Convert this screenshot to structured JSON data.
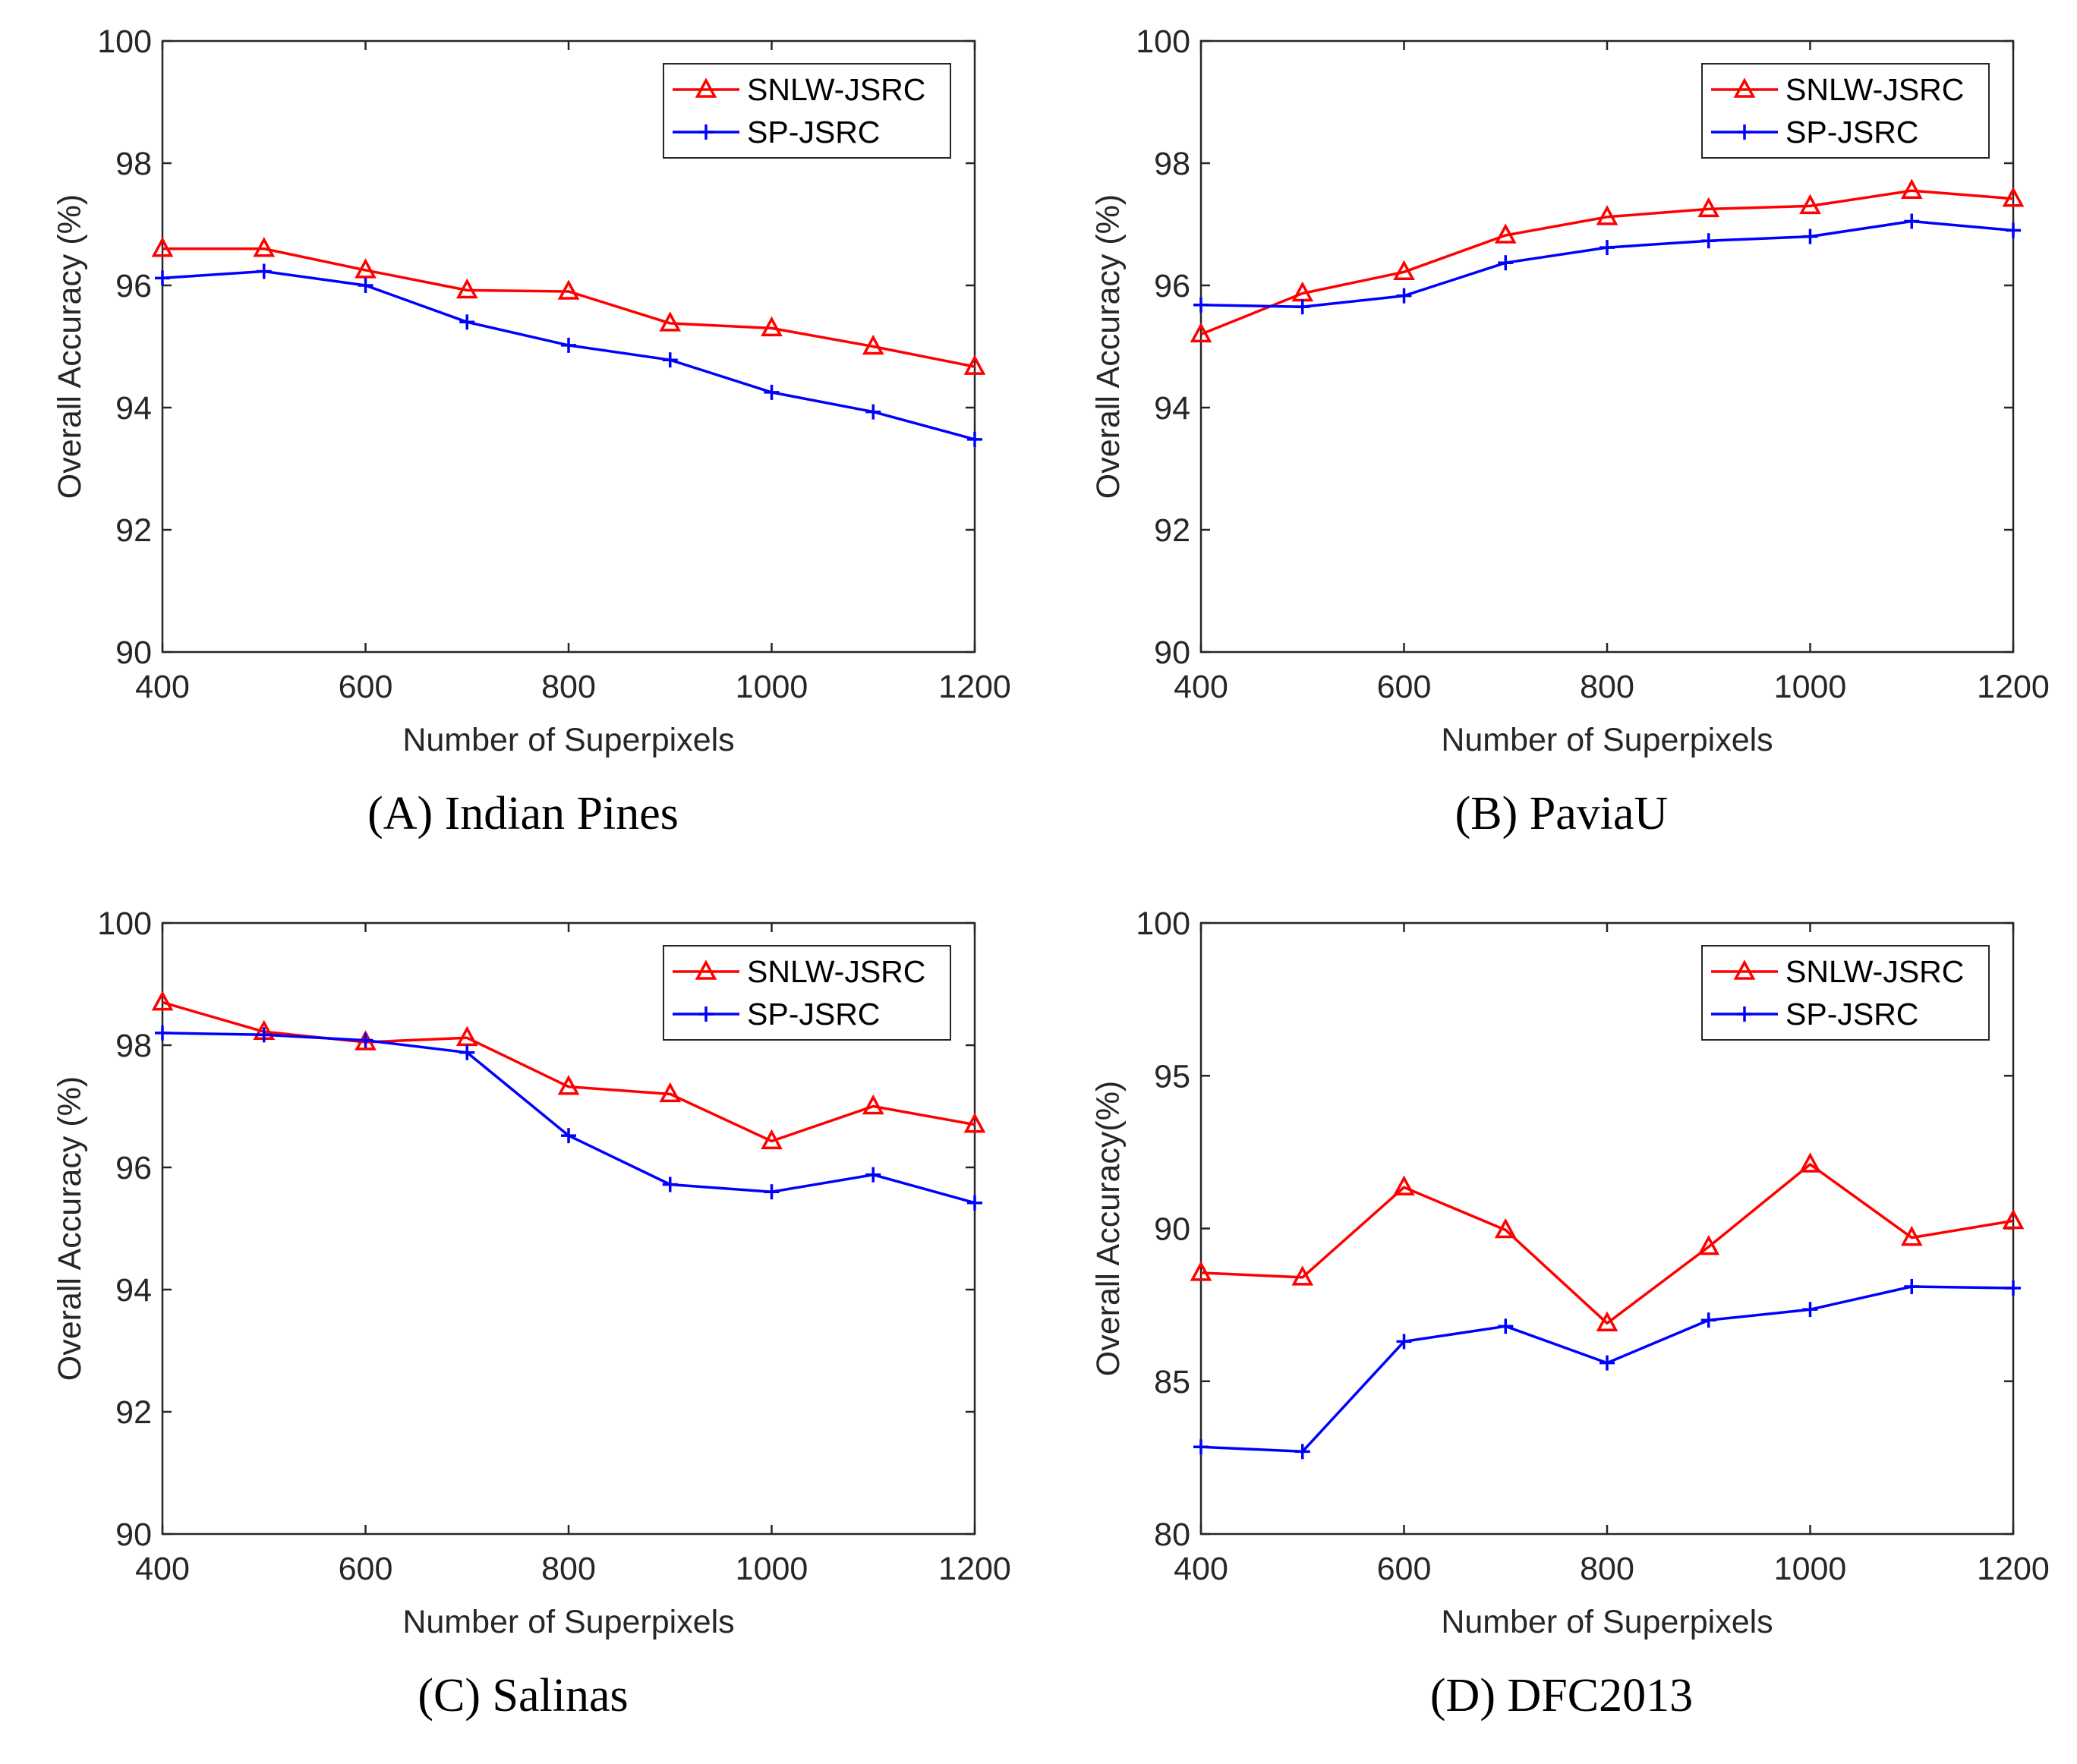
{
  "chart_data": [
    {
      "type": "line",
      "caption": "(A) Indian Pines",
      "xlabel": "Number of Superpixels",
      "ylabel": "Overall Accuracy (%)",
      "xlim": [
        400,
        1200
      ],
      "ylim": [
        90,
        100
      ],
      "xticks": [
        "400",
        "600",
        "800",
        "1000",
        "1200"
      ],
      "yticks": [
        "90",
        "92",
        "94",
        "96",
        "98",
        "100"
      ],
      "x": [
        400,
        500,
        600,
        700,
        800,
        900,
        1000,
        1100,
        1200
      ],
      "series": [
        {
          "name": "SNLW-JSRC",
          "color": "#ff0000",
          "marker": "triangle",
          "values": [
            96.6,
            96.6,
            96.25,
            95.92,
            95.9,
            95.38,
            95.3,
            95.0,
            94.67
          ]
        },
        {
          "name": "SP-JSRC",
          "color": "#0000ff",
          "marker": "plus",
          "values": [
            96.12,
            96.23,
            96.0,
            95.4,
            95.02,
            94.78,
            94.25,
            93.93,
            93.48
          ]
        }
      ],
      "legend": "top-right",
      "grid": false
    },
    {
      "type": "line",
      "caption": "(B) PaviaU",
      "xlabel": "Number of Superpixels",
      "ylabel": "Overall Accuracy (%)",
      "xlim": [
        400,
        1200
      ],
      "ylim": [
        90,
        100
      ],
      "xticks": [
        "400",
        "600",
        "800",
        "1000",
        "1200"
      ],
      "yticks": [
        "90",
        "92",
        "94",
        "96",
        "98",
        "100"
      ],
      "x": [
        400,
        500,
        600,
        700,
        800,
        900,
        1000,
        1100,
        1200
      ],
      "series": [
        {
          "name": "SNLW-JSRC",
          "color": "#ff0000",
          "marker": "triangle",
          "values": [
            95.2,
            95.87,
            96.22,
            96.82,
            97.12,
            97.25,
            97.3,
            97.55,
            97.42
          ]
        },
        {
          "name": "SP-JSRC",
          "color": "#0000ff",
          "marker": "plus",
          "values": [
            95.68,
            95.65,
            95.83,
            96.37,
            96.62,
            96.73,
            96.8,
            97.05,
            96.9
          ]
        }
      ],
      "legend": "top-right",
      "grid": false
    },
    {
      "type": "line",
      "caption": "(C) Salinas",
      "xlabel": "Number of Superpixels",
      "ylabel": "Overall Accuracy (%)",
      "xlim": [
        400,
        1200
      ],
      "ylim": [
        90,
        100
      ],
      "xticks": [
        "400",
        "600",
        "800",
        "1000",
        "1200"
      ],
      "yticks": [
        "90",
        "92",
        "94",
        "96",
        "98",
        "100"
      ],
      "x": [
        400,
        500,
        600,
        700,
        800,
        900,
        1000,
        1100,
        1200
      ],
      "series": [
        {
          "name": "SNLW-JSRC",
          "color": "#ff0000",
          "marker": "triangle",
          "values": [
            98.7,
            98.22,
            98.05,
            98.12,
            97.32,
            97.2,
            96.43,
            97.0,
            96.7
          ]
        },
        {
          "name": "SP-JSRC",
          "color": "#0000ff",
          "marker": "plus",
          "values": [
            98.2,
            98.17,
            98.08,
            97.88,
            96.52,
            95.72,
            95.6,
            95.88,
            95.42
          ]
        }
      ],
      "legend": "top-right",
      "grid": false
    },
    {
      "type": "line",
      "caption": "(D) DFC2013",
      "xlabel": "Number of Superpixels",
      "ylabel": "Overall Accuracy(%)",
      "xlim": [
        400,
        1200
      ],
      "ylim": [
        80,
        100
      ],
      "xticks": [
        "400",
        "600",
        "800",
        "1000",
        "1200"
      ],
      "yticks": [
        "80",
        "85",
        "90",
        "95",
        "100"
      ],
      "x": [
        400,
        500,
        600,
        700,
        800,
        900,
        1000,
        1100,
        1200
      ],
      "series": [
        {
          "name": "SNLW-JSRC",
          "color": "#ff0000",
          "marker": "triangle",
          "values": [
            88.55,
            88.4,
            91.35,
            89.95,
            86.9,
            89.4,
            92.1,
            89.7,
            90.25
          ]
        },
        {
          "name": "SP-JSRC",
          "color": "#0000ff",
          "marker": "plus",
          "values": [
            82.85,
            82.7,
            86.3,
            86.8,
            85.6,
            87.0,
            87.35,
            88.1,
            88.05
          ]
        }
      ],
      "legend": "top-right",
      "grid": false
    }
  ]
}
